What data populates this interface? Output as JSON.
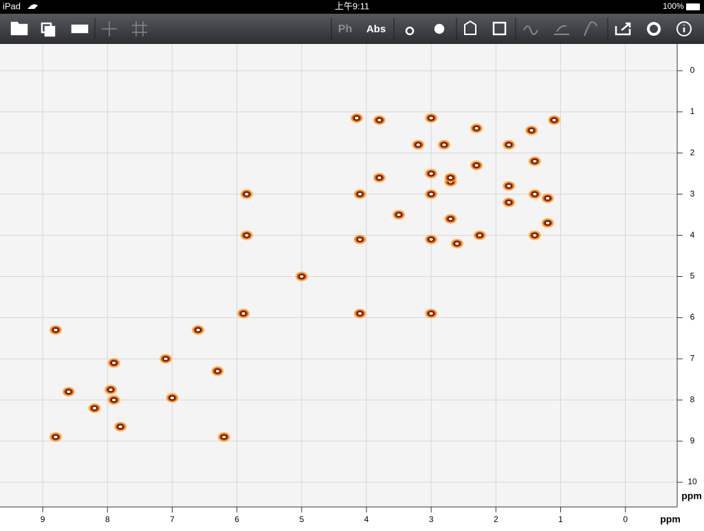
{
  "status_bar": {
    "device": "iPad",
    "time": "上午9:11",
    "battery": "100%"
  },
  "toolbar": {
    "buttons": [
      "Ph",
      "Abs"
    ]
  },
  "chart_data": {
    "type": "scatter",
    "x_label": "ppm",
    "y_label": "ppm",
    "xlim": [
      9.66,
      -0.8
    ],
    "ylim": [
      -0.65,
      10.6
    ],
    "xticks": [
      9,
      8,
      7,
      6,
      5,
      4,
      3,
      2,
      1,
      0
    ],
    "yticks": [
      0,
      1,
      2,
      3,
      4,
      5,
      6,
      7,
      8,
      9,
      10
    ],
    "grid": true,
    "x": [
      1.1,
      1.8,
      2.3,
      2.7,
      3.0,
      3.5,
      4.1,
      5.0,
      5.9,
      7.1,
      7.9,
      8.2,
      3.8,
      3.0,
      4.15,
      2.3,
      1.45,
      3.2,
      2.8,
      1.4,
      3.0,
      2.7,
      3.8,
      4.1,
      2.7,
      3.0,
      4.1,
      3.0,
      5.85,
      5.85,
      1.2,
      1.2,
      1.8,
      1.8,
      2.25,
      2.6,
      8.8,
      7.9,
      7.0,
      8.6,
      8.8,
      6.2,
      7.8,
      6.3,
      7.95,
      1.4,
      1.4,
      6.6
    ],
    "y": [
      1.2,
      1.8,
      2.3,
      2.7,
      3.0,
      3.5,
      4.1,
      5.0,
      5.9,
      7.0,
      8.0,
      8.2,
      1.2,
      1.15,
      1.15,
      1.4,
      1.45,
      1.8,
      1.8,
      2.2,
      2.5,
      2.6,
      2.6,
      3.0,
      3.6,
      4.1,
      5.9,
      5.9,
      3.0,
      4.0,
      3.7,
      3.1,
      2.8,
      3.2,
      4.0,
      4.2,
      6.3,
      7.1,
      7.95,
      7.8,
      8.9,
      8.9,
      8.65,
      7.3,
      7.75,
      4.0,
      3.0,
      6.3
    ],
    "colors": [
      "#f7a428",
      "#d23c0c",
      "#4a1200",
      "#ffffff"
    ]
  }
}
